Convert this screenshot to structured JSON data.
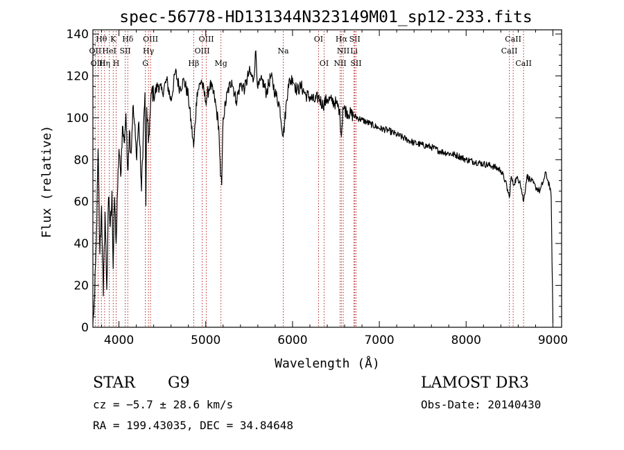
{
  "chart_data": {
    "type": "line",
    "title": "spec-56778-HD131344N323149M01_sp12-233.fits",
    "xlabel": "Wavelength (Å)",
    "ylabel": "Flux (relative)",
    "xlim": [
      3700,
      9100
    ],
    "ylim": [
      0,
      142
    ],
    "x_ticks": [
      4000,
      5000,
      6000,
      7000,
      8000,
      9000
    ],
    "x_tick_labels": [
      "4000",
      "5000",
      "6000",
      "7000",
      "8000",
      "9000"
    ],
    "y_ticks": [
      0,
      20,
      40,
      60,
      80,
      100,
      120,
      140
    ],
    "y_tick_labels": [
      "0",
      "20",
      "40",
      "60",
      "80",
      "100",
      "120",
      "140"
    ],
    "line_color": "#000000",
    "marker_color": "#b22222",
    "series": [
      {
        "name": "flux",
        "x": [
          3700,
          3720,
          3740,
          3760,
          3780,
          3800,
          3820,
          3840,
          3860,
          3880,
          3900,
          3920,
          3933,
          3950,
          3968,
          3985,
          4000,
          4020,
          4040,
          4060,
          4080,
          4100,
          4120,
          4140,
          4160,
          4180,
          4200,
          4230,
          4260,
          4280,
          4300,
          4310,
          4320,
          4340,
          4360,
          4380,
          4400,
          4450,
          4500,
          4550,
          4600,
          4650,
          4700,
          4750,
          4800,
          4861,
          4900,
          4950,
          5000,
          5050,
          5100,
          5150,
          5170,
          5184,
          5200,
          5250,
          5300,
          5350,
          5400,
          5450,
          5500,
          5550,
          5577,
          5600,
          5650,
          5700,
          5750,
          5800,
          5850,
          5893,
          5950,
          6000,
          6050,
          6100,
          6150,
          6200,
          6250,
          6300,
          6350,
          6400,
          6450,
          6500,
          6540,
          6563,
          6580,
          6620,
          6700,
          6800,
          6900,
          7000,
          7100,
          7200,
          7300,
          7400,
          7500,
          7600,
          7700,
          7800,
          7900,
          8000,
          8100,
          8200,
          8300,
          8400,
          8450,
          8498,
          8520,
          8542,
          8580,
          8620,
          8662,
          8700,
          8750,
          8800,
          8850,
          8900,
          8920,
          8940,
          8960,
          8980,
          9000
        ],
        "y": [
          2,
          14,
          42,
          85,
          35,
          58,
          15,
          55,
          18,
          62,
          48,
          65,
          28,
          62,
          40,
          66,
          85,
          72,
          96,
          88,
          102,
          75,
          94,
          83,
          105,
          97,
          82,
          98,
          65,
          92,
          112,
          58,
          105,
          88,
          102,
          114,
          110,
          116,
          112,
          118,
          108,
          122,
          114,
          118,
          110,
          86,
          112,
          118,
          108,
          116,
          110,
          96,
          72,
          68,
          100,
          112,
          118,
          108,
          116,
          114,
          122,
          118,
          132,
          114,
          118,
          112,
          120,
          112,
          106,
          91,
          116,
          119,
          113,
          115,
          111,
          110,
          108,
          110,
          106,
          109,
          108,
          107,
          104,
          91,
          105,
          103,
          101,
          99,
          97,
          95,
          94,
          92,
          90,
          88,
          87,
          86,
          84,
          83,
          82,
          80,
          79,
          78,
          77,
          75,
          70,
          62,
          72,
          68,
          71,
          70,
          60,
          72,
          70,
          67,
          65,
          71,
          74,
          70,
          68,
          62,
          2
        ]
      }
    ],
    "line_markers": [
      {
        "label": "Hθ",
        "wavelength": 3798,
        "row": 0
      },
      {
        "label": "K",
        "wavelength": 3934,
        "row": 0
      },
      {
        "label": "Hδ",
        "wavelength": 4102,
        "row": 0
      },
      {
        "label": "OIII",
        "wavelength": 4364,
        "row": 0
      },
      {
        "label": "OIII",
        "wavelength": 5007,
        "row": 0
      },
      {
        "label": "OI",
        "wavelength": 6300,
        "row": 0
      },
      {
        "label": "Hα",
        "wavelength": 6563,
        "row": 0
      },
      {
        "label": "SII",
        "wavelength": 6717,
        "row": 0
      },
      {
        "label": "CaII",
        "wavelength": 8542,
        "row": 0
      },
      {
        "label": "OII",
        "wavelength": 3727,
        "row": 1
      },
      {
        "label": "HeI",
        "wavelength": 3889,
        "row": 1
      },
      {
        "label": "SII",
        "wavelength": 4072,
        "row": 1
      },
      {
        "label": "Hγ",
        "wavelength": 4340,
        "row": 1
      },
      {
        "label": "OIII",
        "wavelength": 4959,
        "row": 1
      },
      {
        "label": "Na",
        "wavelength": 5893,
        "row": 1
      },
      {
        "label": "NII",
        "wavelength": 6584,
        "row": 1
      },
      {
        "label": "Li",
        "wavelength": 6708,
        "row": 1
      },
      {
        "label": "CaII",
        "wavelength": 8498,
        "row": 1
      },
      {
        "label": "OIII",
        "wavelength": 3760,
        "row": 2
      },
      {
        "label": "Hη",
        "wavelength": 3835,
        "row": 2
      },
      {
        "label": "H",
        "wavelength": 3968,
        "row": 2
      },
      {
        "label": "G",
        "wavelength": 4304,
        "row": 2
      },
      {
        "label": "Hβ",
        "wavelength": 4861,
        "row": 2
      },
      {
        "label": "Mg",
        "wavelength": 5175,
        "row": 2
      },
      {
        "label": "OI",
        "wavelength": 6364,
        "row": 2
      },
      {
        "label": "NII",
        "wavelength": 6548,
        "row": 2
      },
      {
        "label": "SII",
        "wavelength": 6731,
        "row": 2
      },
      {
        "label": "CaII",
        "wavelength": 8662,
        "row": 2
      }
    ]
  },
  "footer": {
    "object_class": "STAR",
    "subclass": "G9",
    "survey": "LAMOST DR3",
    "redshift_line": "cz = −5.7 ± 28.6 km/s",
    "obs_date": "Obs-Date: 20140430",
    "coords": "RA = 199.43035, DEC =  34.84648"
  }
}
